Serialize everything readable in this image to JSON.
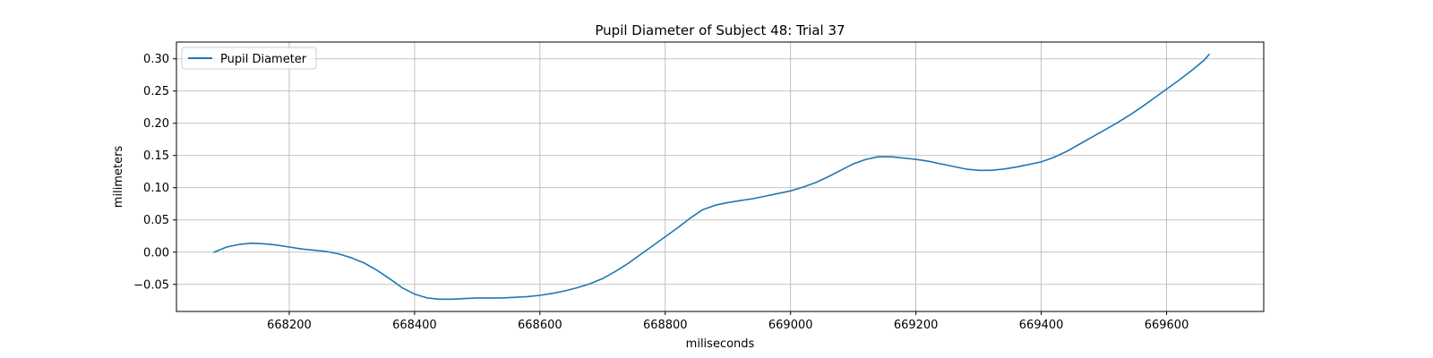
{
  "chart_data": {
    "type": "line",
    "title": "Pupil Diameter of Subject 48: Trial 37",
    "xlabel": "miliseconds",
    "ylabel": "milimeters",
    "xlim": [
      668020,
      669755
    ],
    "ylim": [
      -0.092,
      0.326
    ],
    "xticks": [
      668200,
      668400,
      668600,
      668800,
      669000,
      669200,
      669400,
      669600
    ],
    "yticks": [
      -0.05,
      0.0,
      0.05,
      0.1,
      0.15,
      0.2,
      0.25,
      0.3
    ],
    "ytick_labels": [
      "−0.05",
      "0.00",
      "0.05",
      "0.10",
      "0.15",
      "0.20",
      "0.25",
      "0.30"
    ],
    "grid": true,
    "legend_position": "top-left",
    "series": [
      {
        "name": "Pupil Diameter",
        "color": "#1f77b4",
        "x": [
          668080,
          668100,
          668120,
          668140,
          668160,
          668180,
          668200,
          668220,
          668240,
          668260,
          668280,
          668300,
          668320,
          668340,
          668360,
          668380,
          668400,
          668420,
          668440,
          668460,
          668480,
          668500,
          668520,
          668540,
          668560,
          668580,
          668600,
          668620,
          668640,
          668660,
          668680,
          668700,
          668720,
          668740,
          668760,
          668780,
          668800,
          668820,
          668840,
          668860,
          668880,
          668900,
          668920,
          668940,
          668960,
          668980,
          669000,
          669020,
          669040,
          669060,
          669080,
          669100,
          669120,
          669140,
          669160,
          669180,
          669200,
          669220,
          669240,
          669260,
          669280,
          669300,
          669320,
          669340,
          669360,
          669380,
          669400,
          669420,
          669440,
          669460,
          669480,
          669500,
          669520,
          669540,
          669560,
          669580,
          669600,
          669620,
          669640,
          669660,
          669668
        ],
        "y": [
          0.0,
          0.008,
          0.012,
          0.014,
          0.013,
          0.011,
          0.008,
          0.005,
          0.003,
          0.001,
          -0.003,
          -0.009,
          -0.017,
          -0.028,
          -0.041,
          -0.055,
          -0.065,
          -0.071,
          -0.073,
          -0.073,
          -0.072,
          -0.071,
          -0.071,
          -0.071,
          -0.07,
          -0.069,
          -0.067,
          -0.064,
          -0.06,
          -0.055,
          -0.049,
          -0.041,
          -0.03,
          -0.018,
          -0.004,
          0.01,
          0.024,
          0.038,
          0.053,
          0.066,
          0.073,
          0.077,
          0.08,
          0.083,
          0.087,
          0.091,
          0.095,
          0.101,
          0.108,
          0.117,
          0.127,
          0.137,
          0.144,
          0.148,
          0.148,
          0.146,
          0.144,
          0.141,
          0.137,
          0.133,
          0.129,
          0.127,
          0.127,
          0.129,
          0.132,
          0.136,
          0.14,
          0.147,
          0.156,
          0.167,
          0.178,
          0.189,
          0.2,
          0.212,
          0.225,
          0.239,
          0.253,
          0.267,
          0.282,
          0.298,
          0.307
        ]
      }
    ]
  }
}
